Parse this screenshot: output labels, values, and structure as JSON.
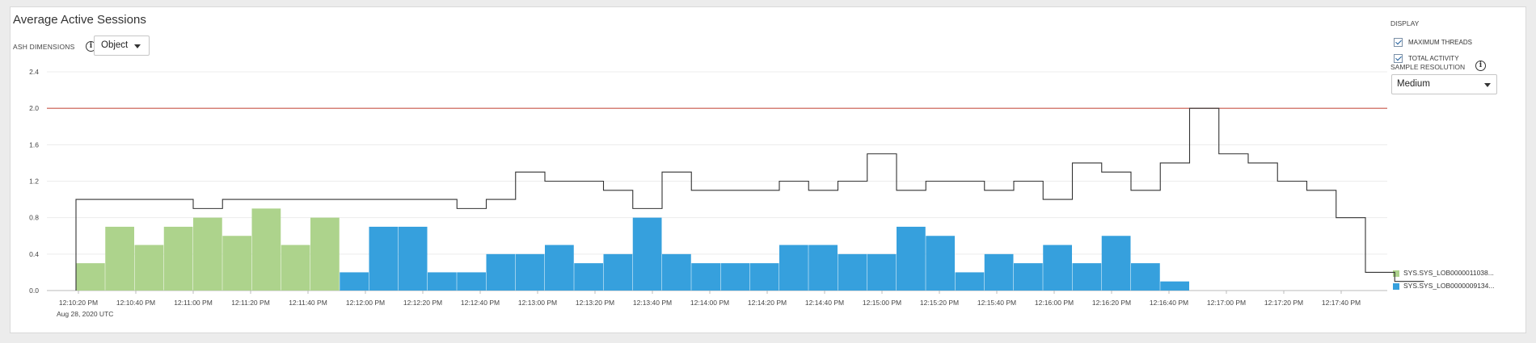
{
  "panel": {
    "title": "Average Active Sessions",
    "ash_dimensions_label": "ASH DIMENSIONS",
    "ash_dimension_value": "Object",
    "display_label": "DISPLAY",
    "display_options": [
      {
        "label": "MAXIMUM THREADS",
        "checked": true
      },
      {
        "label": "TOTAL ACTIVITY",
        "checked": true
      }
    ],
    "sample_resolution_label": "SAMPLE RESOLUTION",
    "sample_resolution_value": "Medium"
  },
  "chart_data": {
    "type": "bar",
    "stacked": true,
    "y_ticks": [
      "0.0",
      "0.4",
      "0.8",
      "1.2",
      "1.6",
      "2.0",
      "2.4"
    ],
    "ylim": [
      0,
      2.4
    ],
    "x_ticks": [
      "12:10:20 PM",
      "12:10:40 PM",
      "12:11:00 PM",
      "12:11:20 PM",
      "12:11:40 PM",
      "12:12:00 PM",
      "12:12:20 PM",
      "12:12:40 PM",
      "12:13:00 PM",
      "12:13:20 PM",
      "12:13:40 PM",
      "12:14:00 PM",
      "12:14:20 PM",
      "12:14:40 PM",
      "12:15:00 PM",
      "12:15:20 PM",
      "12:15:40 PM",
      "12:16:00 PM",
      "12:16:20 PM",
      "12:16:40 PM",
      "12:17:00 PM",
      "12:17:20 PM",
      "12:17:40 PM"
    ],
    "x_date": "Aug 28, 2020 UTC",
    "max_threads": 2.0,
    "series": [
      {
        "name": "SYS.SYS_LOB0000011038...",
        "color": "#add38c",
        "values": [
          0.3,
          0.7,
          0.5,
          0.7,
          0.8,
          0.6,
          0.9,
          0.5,
          0.8,
          0,
          0,
          0,
          0,
          0,
          0,
          0,
          0,
          0,
          0,
          0,
          0,
          0,
          0,
          0,
          0,
          0,
          0,
          0,
          0,
          0,
          0,
          0,
          0,
          0,
          0,
          0,
          0,
          0,
          0,
          0,
          0,
          0,
          0,
          0,
          0,
          0
        ]
      },
      {
        "name": "SYS.SYS_LOB0000009134...",
        "color": "#36a0dd",
        "values": [
          0,
          0,
          0,
          0,
          0,
          0,
          0,
          0,
          0,
          0.2,
          0.7,
          0.7,
          0.2,
          0.2,
          0.4,
          0.4,
          0.5,
          0.3,
          0.4,
          0.8,
          0.4,
          0.3,
          0.3,
          0.3,
          0.5,
          0.5,
          0.4,
          0.4,
          0.7,
          0.6,
          0.2,
          0.4,
          0.3,
          0.5,
          0.3,
          0.6,
          0.3,
          0.1,
          0,
          0,
          0,
          0,
          0,
          0,
          0,
          0
        ]
      }
    ],
    "total_activity": [
      1.0,
      1.0,
      1.0,
      1.0,
      0.9,
      1.0,
      1.0,
      1.0,
      1.0,
      1.0,
      1.0,
      1.0,
      1.0,
      0.9,
      1.0,
      1.3,
      1.2,
      1.2,
      1.1,
      0.9,
      1.3,
      1.1,
      1.1,
      1.1,
      1.2,
      1.1,
      1.2,
      1.5,
      1.1,
      1.2,
      1.2,
      1.1,
      1.2,
      1.0,
      1.4,
      1.3,
      1.1,
      1.4,
      2.0,
      1.5,
      1.4,
      1.2,
      1.1,
      0.8,
      0.2,
      0.1
    ]
  }
}
